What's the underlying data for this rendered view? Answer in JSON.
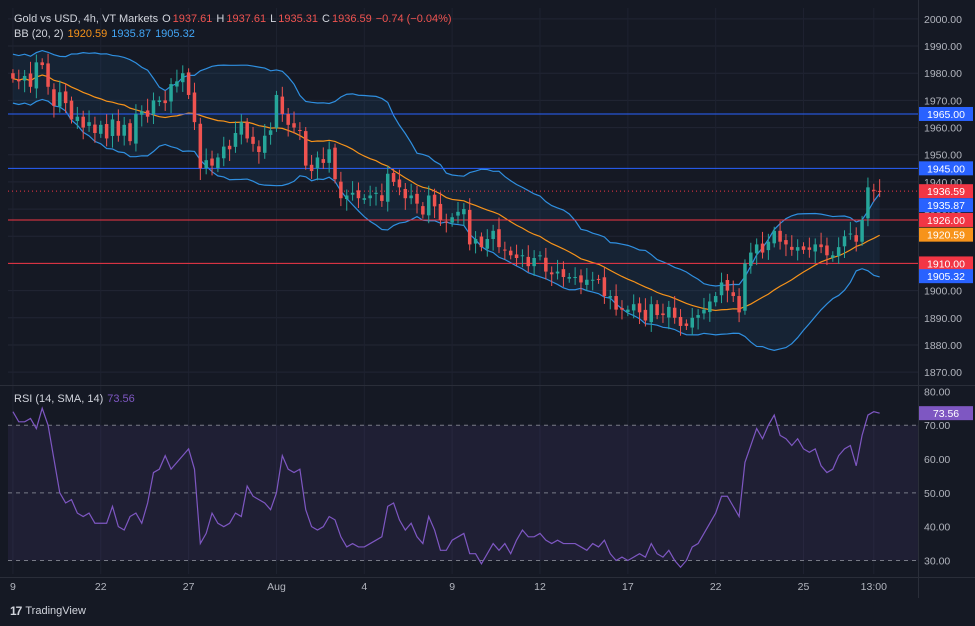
{
  "header": {
    "symbol": "Gold vs USD, 4h, VT Markets",
    "o_label": "O",
    "o_value": "1937.61",
    "h_label": "H",
    "h_value": "1937.61",
    "l_label": "L",
    "l_value": "1935.31",
    "c_label": "C",
    "c_value": "1936.59",
    "change": "−0.74 (−0.04%)"
  },
  "bb_legend": {
    "label": "BB (20, 2)",
    "basis": "1920.59",
    "upper": "1935.87",
    "lower": "1905.32"
  },
  "rsi_legend": {
    "label": "RSI (14, SMA, 14)",
    "value": "73.56"
  },
  "branding": {
    "logo_text": "TradingView",
    "logo_mark": "17"
  },
  "colors": {
    "background": "#151924",
    "up": "#26a69a",
    "down": "#ef5350",
    "bb_band": "#2962ff",
    "bb_basis": "#f7931a",
    "rsi": "#7e57c2",
    "support": "#f23645",
    "resistance": "#2962ff"
  },
  "chart_data": [
    {
      "type": "candlestick",
      "title": "Gold vs USD, 4h",
      "ylim": [
        1866,
        2004
      ],
      "yticks": [
        2000,
        1990,
        1980,
        1970,
        1960,
        1950,
        1940,
        1930,
        1920,
        1910,
        1900,
        1890,
        1880,
        1870
      ],
      "ytick_labels": [
        "2000.00",
        "1990.00",
        "1980.00",
        "1970.00",
        "1960.00",
        "1950.00",
        "1940.00",
        "1930.00",
        "1920.00",
        "1910.00",
        "1900.00",
        "1890.00",
        "1880.00",
        "1870.00"
      ],
      "xticks": [
        {
          "label": "9",
          "index": 0
        },
        {
          "label": "22",
          "index": 15
        },
        {
          "label": "27",
          "index": 30
        },
        {
          "label": "Aug",
          "index": 45
        },
        {
          "label": "4",
          "index": 60
        },
        {
          "label": "9",
          "index": 75
        },
        {
          "label": "12",
          "index": 90
        },
        {
          "label": "17",
          "index": 105
        },
        {
          "label": "22",
          "index": 120
        },
        {
          "label": "25",
          "index": 135
        },
        {
          "label": "13:00",
          "index": 147
        }
      ],
      "horizontal_levels": [
        {
          "value": 1965.0,
          "label": "1965.00",
          "color": "#2962ff"
        },
        {
          "value": 1945.0,
          "label": "1945.00",
          "color": "#2962ff"
        },
        {
          "value": 1926.0,
          "label": "1926.00",
          "color": "#f23645"
        },
        {
          "value": 1910.0,
          "label": "1910.00",
          "color": "#f23645"
        }
      ],
      "price_tags": [
        {
          "value": 1936.59,
          "label": "1936.59",
          "color": "#f23645"
        },
        {
          "value": 1935.87,
          "label": "1935.87",
          "color": "#2962ff"
        },
        {
          "value": 1920.59,
          "label": "1920.59",
          "color": "#f7931a"
        },
        {
          "value": 1905.32,
          "label": "1905.32",
          "color": "#2962ff"
        }
      ],
      "last_price": 1936.59,
      "close": [
        1978.0,
        1977.0,
        1979.0,
        1975.0,
        1984.0,
        1983.0,
        1975.0,
        1968.0,
        1973.0,
        1969.0,
        1963.0,
        1964.0,
        1960.0,
        1962.0,
        1958.0,
        1961.0,
        1956.0,
        1963.0,
        1957.0,
        1961.0,
        1955.0,
        1965.0,
        1966.0,
        1964.0,
        1970.0,
        1970.0,
        1969.0,
        1976.0,
        1977.0,
        1980.0,
        1972.0,
        1962.0,
        1945.0,
        1948.0,
        1946.0,
        1949.0,
        1953.0,
        1952.0,
        1958.0,
        1962.0,
        1956.0,
        1954.0,
        1951.0,
        1957.0,
        1959.0,
        1972.0,
        1965.0,
        1961.0,
        1960.0,
        1959.0,
        1946.0,
        1944.0,
        1949.0,
        1947.0,
        1952.0,
        1941.0,
        1934.0,
        1935.0,
        1936.0,
        1934.0,
        1934.0,
        1935.0,
        1936.0,
        1933.0,
        1943.0,
        1940.0,
        1938.0,
        1934.0,
        1935.0,
        1932.0,
        1928.0,
        1935.0,
        1931.0,
        1926.0,
        1925.0,
        1927.0,
        1929.0,
        1930.0,
        1917.0,
        1919.0,
        1916.0,
        1919.0,
        1922.0,
        1916.0,
        1915.0,
        1913.0,
        1912.0,
        1913.0,
        1909.0,
        1912.0,
        1913.0,
        1907.0,
        1906.0,
        1907.0,
        1905.0,
        1905.0,
        1905.0,
        1903.0,
        1904.0,
        1904.0,
        1904.0,
        1898.0,
        1898.0,
        1893.0,
        1893.0,
        1893.0,
        1895.0,
        1892.0,
        1889.0,
        1895.0,
        1891.0,
        1891.0,
        1894.0,
        1890.0,
        1887.0,
        1887.0,
        1890.0,
        1891.0,
        1893.0,
        1896.0,
        1898.0,
        1903.0,
        1900.0,
        1898.0,
        1892.0,
        1910.0,
        1914.0,
        1917.0,
        1914.0,
        1918.0,
        1922.0,
        1918.0,
        1917.0,
        1915.0,
        1916.0,
        1915.0,
        1915.0,
        1917.0,
        1916.0,
        1913.0,
        1913.0,
        1916.0,
        1920.0,
        1921.0,
        1918.0,
        1926.0,
        1938.0,
        1937.0,
        1936.6
      ],
      "rsi": {
        "ylim": [
          26,
          81
        ],
        "yticks": [
          80,
          70,
          60,
          50,
          40,
          30
        ],
        "ytick_labels": [
          "80.00",
          "70.00",
          "60.00",
          "50.00",
          "40.00",
          "30.00"
        ],
        "bands": [
          70,
          50,
          30
        ],
        "values": [
          74,
          71,
          71,
          72,
          69,
          75,
          70,
          60,
          50,
          47,
          48,
          44,
          43,
          44,
          41,
          41,
          41,
          46,
          40,
          39,
          43,
          44,
          41,
          47,
          56,
          57,
          61,
          57,
          59,
          61,
          63,
          57,
          35,
          38,
          44,
          41,
          40,
          41,
          44,
          43,
          52,
          49,
          48,
          47,
          45,
          50,
          61,
          57,
          56,
          57,
          45,
          40,
          39,
          40,
          43,
          42,
          37,
          34,
          35,
          34,
          34,
          35,
          36,
          37,
          46,
          47,
          42,
          39,
          41,
          37,
          35,
          43,
          39,
          33,
          33,
          36,
          37,
          38,
          32,
          32,
          29,
          32,
          35,
          33,
          35,
          32,
          36,
          39,
          37,
          37,
          38,
          36,
          35,
          36,
          35,
          35,
          35,
          34,
          33,
          35,
          34,
          36,
          32,
          30,
          31,
          30,
          31,
          32,
          31,
          35,
          32,
          31,
          33,
          30,
          28,
          30,
          34,
          35,
          38,
          41,
          44,
          49,
          49,
          46,
          43,
          59,
          64,
          69,
          66,
          70,
          73,
          67,
          66,
          64,
          66,
          63,
          62,
          63,
          58,
          56,
          57,
          61,
          63,
          64,
          58,
          67,
          73,
          74,
          73.56
        ],
        "last_value": 73.56
      }
    }
  ]
}
